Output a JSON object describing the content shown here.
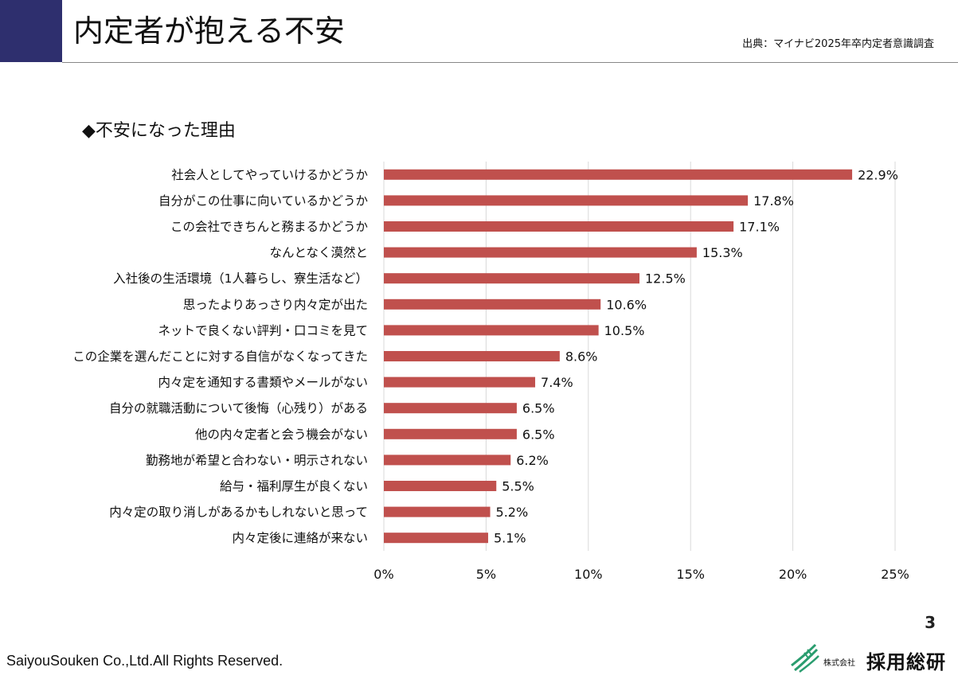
{
  "header": {
    "title": "内定者が抱える不安",
    "source": "出典：マイナビ2025年卒内定者意識調査"
  },
  "section_heading": "◆不安になった理由",
  "chart_data": {
    "type": "bar",
    "orientation": "horizontal",
    "title": "",
    "xlabel": "",
    "ylabel": "",
    "categories": [
      "社会人としてやっていけるかどうか",
      "自分がこの仕事に向いているかどうか",
      "この会社できちんと務まるかどうか",
      "なんとなく漠然と",
      "入社後の生活環境（1人暮らし、寮生活など）",
      "思ったよりあっさり内々定が出た",
      "ネットで良くない評判・口コミを見て",
      "この企業を選んだことに対する自信がなくなってきた",
      "内々定を通知する書類やメールがない",
      "自分の就職活動について後悔（心残り）がある",
      "他の内々定者と会う機会がない",
      "勤務地が希望と合わない・明示されない",
      "給与・福利厚生が良くない",
      "内々定の取り消しがあるかもしれないと思って",
      "内々定後に連絡が来ない"
    ],
    "values": [
      22.9,
      17.8,
      17.1,
      15.3,
      12.5,
      10.6,
      10.5,
      8.6,
      7.4,
      6.5,
      6.5,
      6.2,
      5.5,
      5.2,
      5.1
    ],
    "value_labels": [
      "22.9%",
      "17.8%",
      "17.1%",
      "15.3%",
      "12.5%",
      "10.6%",
      "10.5%",
      "8.6%",
      "7.4%",
      "6.5%",
      "6.5%",
      "6.2%",
      "5.5%",
      "5.2%",
      "5.1%"
    ],
    "x_ticks": [
      0,
      5,
      10,
      15,
      20,
      25
    ],
    "x_tick_labels": [
      "0%",
      "5%",
      "10%",
      "15%",
      "20%",
      "25%"
    ],
    "xlim": [
      0,
      25
    ],
    "grid": true,
    "bar_color": "#c0504d",
    "grid_color": "#d9d9d9"
  },
  "footer": {
    "page_number": "3",
    "copyright": "SaiyouSouken Co.,Ltd.All Rights Reserved.",
    "logo_prefix": "株式会社",
    "logo_name": "採用総研",
    "logo_color": "#2a9d6f"
  }
}
